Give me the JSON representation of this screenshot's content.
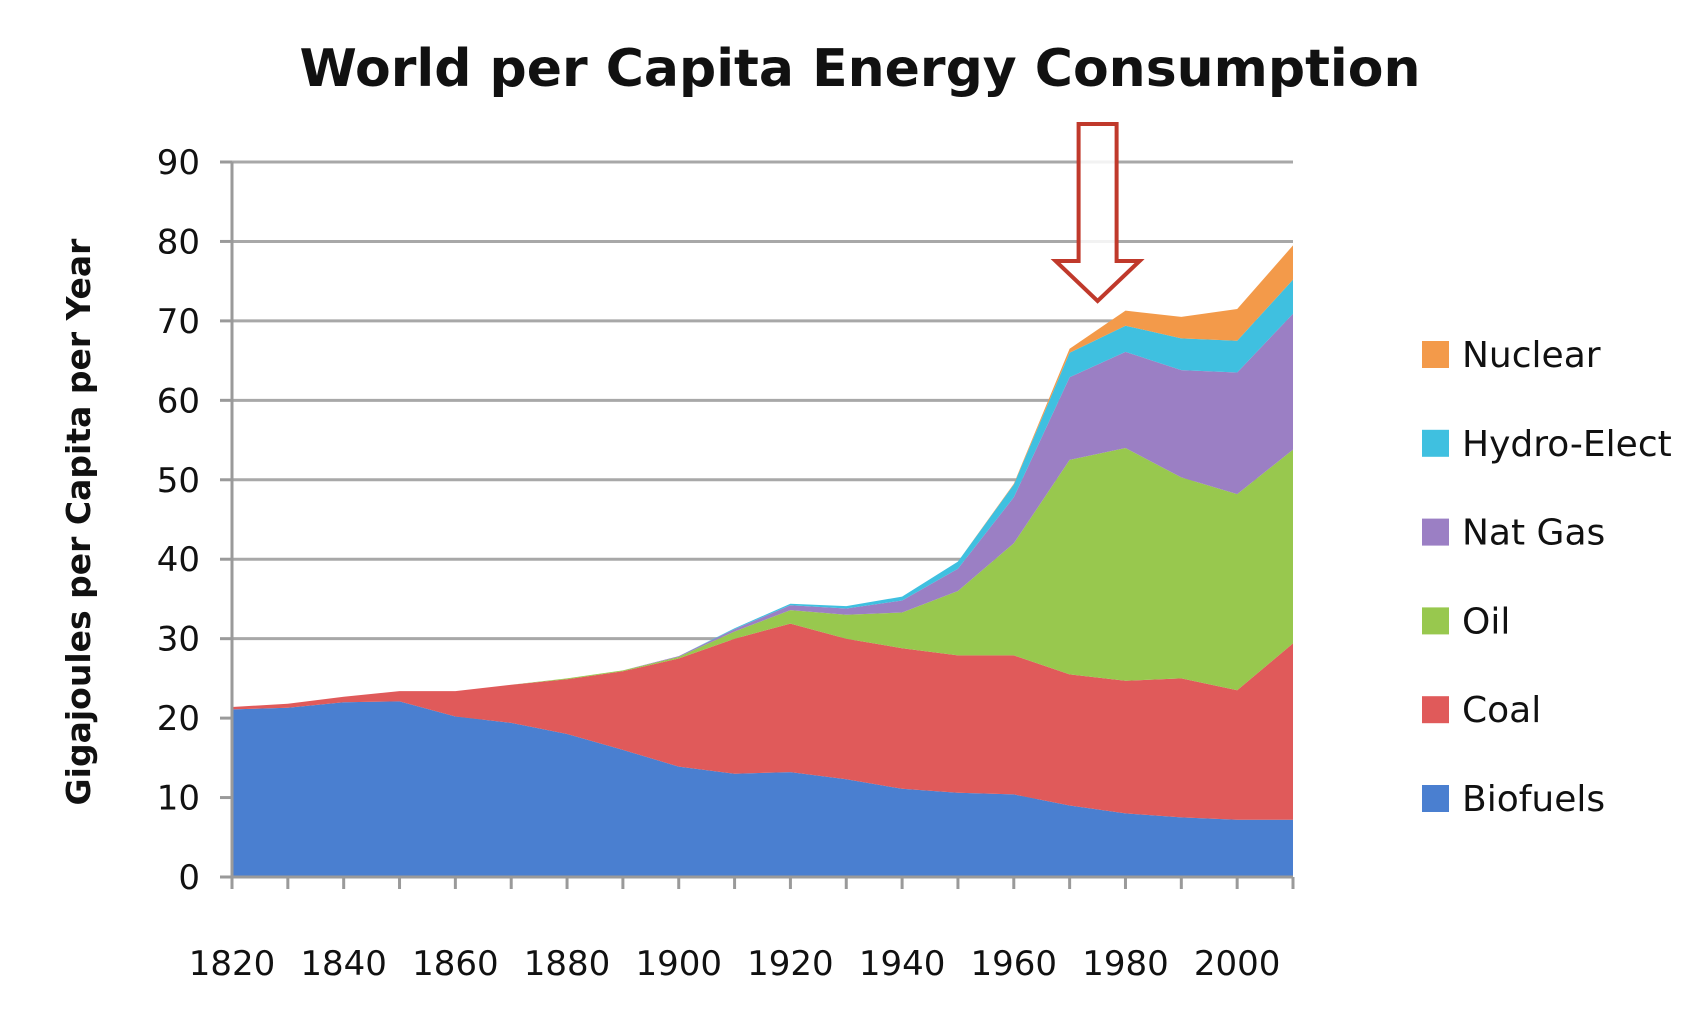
{
  "chart_data": {
    "type": "area",
    "stacked": true,
    "title": "World per Capita Energy Consumption",
    "ylabel": "Gigajoules per Capita per Year",
    "xlabel": "",
    "ylim": [
      0,
      90
    ],
    "xlim": [
      1820,
      2010
    ],
    "grid": "horizontal",
    "legend_position": "right",
    "x_tick_labels": [
      "1820",
      "1840",
      "1860",
      "1880",
      "1900",
      "1920",
      "1940",
      "1960",
      "1980",
      "2000"
    ],
    "y_tick_labels": [
      "0",
      "10",
      "20",
      "30",
      "40",
      "50",
      "60",
      "70",
      "80",
      "90"
    ],
    "x": [
      1820,
      1830,
      1840,
      1850,
      1860,
      1870,
      1880,
      1890,
      1900,
      1910,
      1920,
      1930,
      1940,
      1950,
      1960,
      1970,
      1980,
      1990,
      2000,
      2010
    ],
    "series": [
      {
        "name": "Biofuels",
        "color": "#4a7fd0",
        "values": [
          21.1,
          21.3,
          22.0,
          22.1,
          20.2,
          19.4,
          18.0,
          16.0,
          13.9,
          13.0,
          13.2,
          12.3,
          11.1,
          10.6,
          10.4,
          9.0,
          8.0,
          7.5,
          7.2,
          7.2
        ]
      },
      {
        "name": "Coal",
        "color": "#e05a5a",
        "values": [
          0.3,
          0.5,
          0.7,
          1.3,
          3.2,
          4.8,
          6.9,
          9.9,
          13.6,
          17.0,
          18.7,
          17.7,
          17.7,
          17.3,
          17.5,
          16.5,
          16.7,
          17.5,
          16.3,
          22.2
        ]
      },
      {
        "name": "Oil",
        "color": "#98c84e",
        "values": [
          0,
          0,
          0,
          0,
          0,
          0,
          0.1,
          0.1,
          0.2,
          0.9,
          1.7,
          3.0,
          4.5,
          8.1,
          14.1,
          27.0,
          29.3,
          25.3,
          24.7,
          24.4
        ]
      },
      {
        "name": "Nat Gas",
        "color": "#9b7fc4",
        "values": [
          0,
          0,
          0,
          0,
          0,
          0,
          0,
          0,
          0.1,
          0.3,
          0.6,
          0.8,
          1.5,
          2.8,
          5.8,
          10.4,
          12.1,
          13.5,
          15.3,
          17.1
        ]
      },
      {
        "name": "Hydro-Elect",
        "color": "#3fc0e0",
        "values": [
          0,
          0,
          0,
          0,
          0,
          0,
          0,
          0,
          0,
          0.1,
          0.2,
          0.3,
          0.5,
          0.9,
          1.6,
          3.1,
          3.3,
          4.0,
          4.0,
          4.3
        ]
      },
      {
        "name": "Nuclear",
        "color": "#f39a4a",
        "values": [
          0,
          0,
          0,
          0,
          0,
          0,
          0,
          0,
          0,
          0,
          0,
          0,
          0,
          0,
          0.1,
          0.5,
          1.9,
          2.7,
          4.0,
          4.3
        ]
      }
    ],
    "annotation": {
      "type": "arrow-down",
      "x": 1975,
      "points_to_y": 72.5,
      "color": "#c0392b"
    }
  }
}
